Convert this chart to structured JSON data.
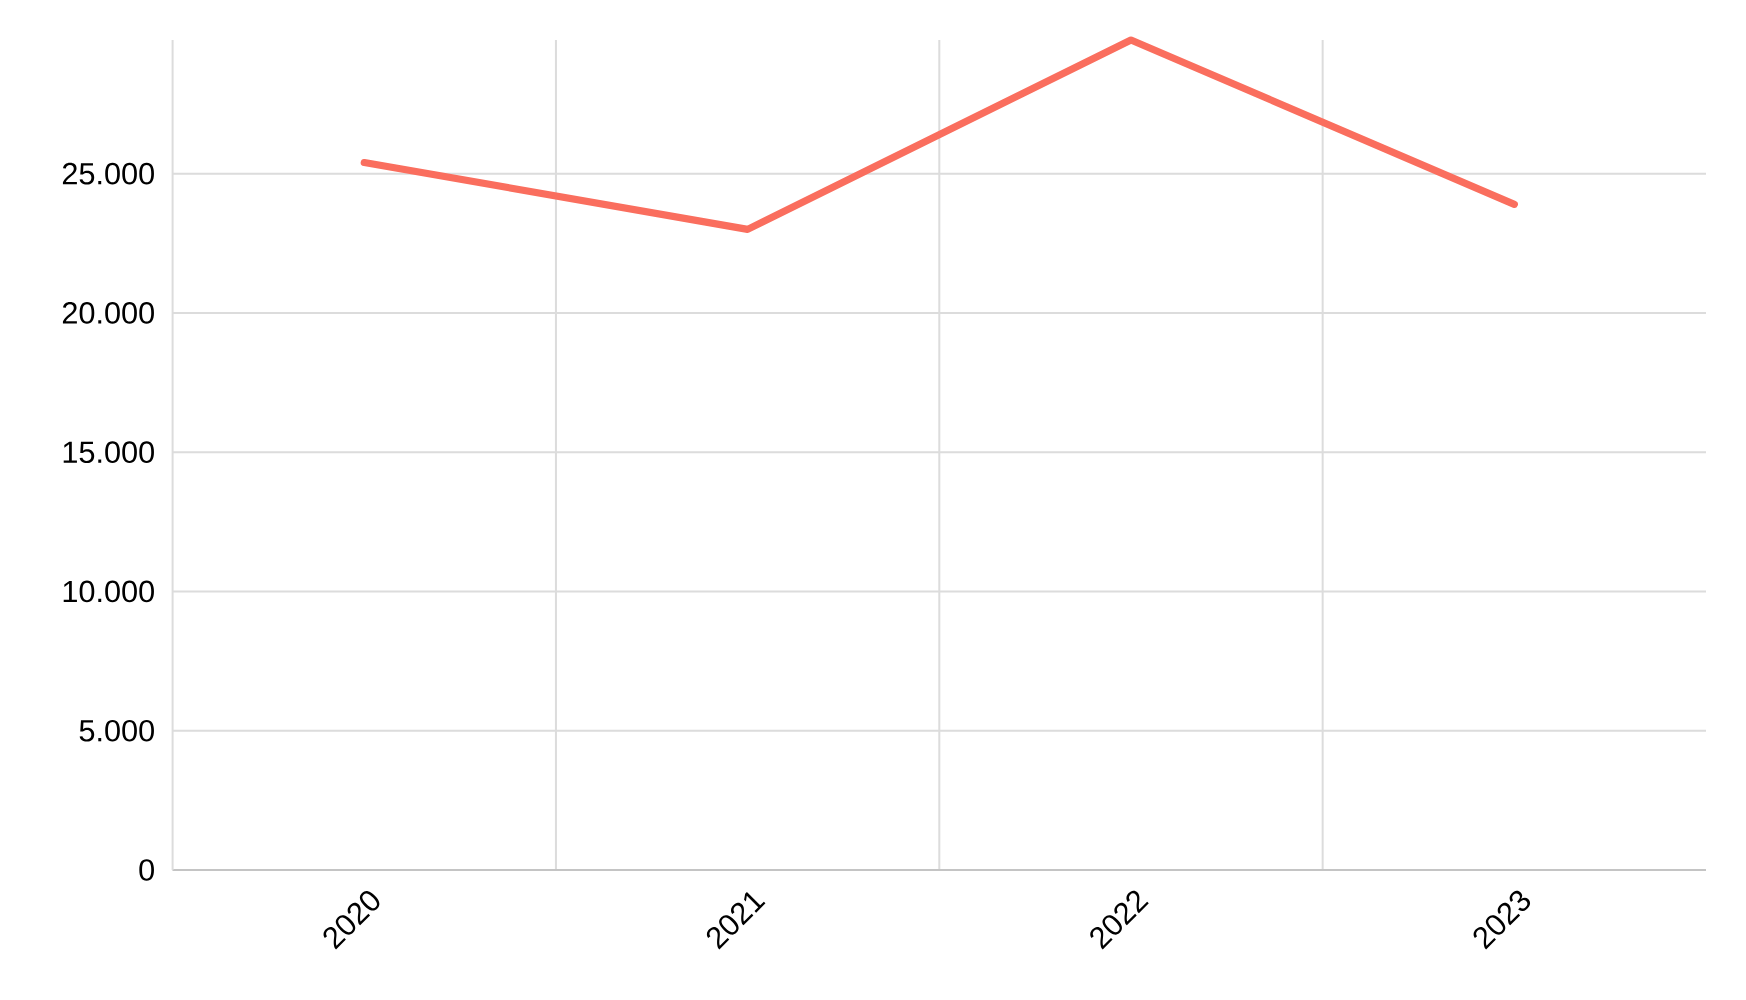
{
  "chart_data": {
    "type": "line",
    "categories": [
      "2020",
      "2021",
      "2022",
      "2023"
    ],
    "values": [
      25400,
      23000,
      29800,
      23900
    ],
    "color": "#fa6e5e",
    "ylim": [
      0,
      29800
    ],
    "yticks": [
      0,
      {
        "value": 5000,
        "label": "5.000"
      },
      {
        "value": 10000,
        "label": "10.000"
      },
      {
        "value": 15000,
        "label": "15.000"
      },
      {
        "value": 20000,
        "label": "20.000"
      },
      {
        "value": 25000,
        "label": "25.000"
      }
    ],
    "grid": true,
    "line_style": "solid"
  }
}
